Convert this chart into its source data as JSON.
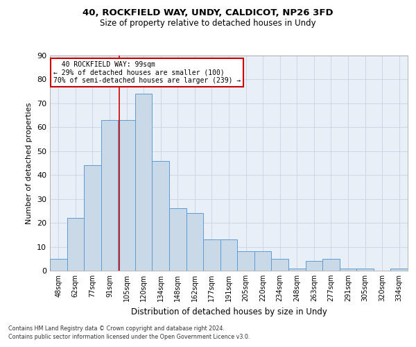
{
  "title1": "40, ROCKFIELD WAY, UNDY, CALDICOT, NP26 3FD",
  "title2": "Size of property relative to detached houses in Undy",
  "xlabel": "Distribution of detached houses by size in Undy",
  "ylabel": "Number of detached properties",
  "categories": [
    "48sqm",
    "62sqm",
    "77sqm",
    "91sqm",
    "105sqm",
    "120sqm",
    "134sqm",
    "148sqm",
    "162sqm",
    "177sqm",
    "191sqm",
    "205sqm",
    "220sqm",
    "234sqm",
    "248sqm",
    "263sqm",
    "277sqm",
    "291sqm",
    "305sqm",
    "320sqm",
    "334sqm"
  ],
  "values": [
    5,
    22,
    44,
    63,
    63,
    74,
    46,
    26,
    24,
    13,
    13,
    8,
    8,
    5,
    1,
    4,
    5,
    1,
    1,
    0,
    1
  ],
  "bar_color": "#c9d9e8",
  "bar_edge_color": "#5b9bd5",
  "grid_color": "#c8d4e0",
  "bg_color": "#e8eff6",
  "vline_x": 3.57,
  "vline_color": "#cc0000",
  "annotation_text": "  40 ROCKFIELD WAY: 99sqm\n← 29% of detached houses are smaller (100)\n70% of semi-detached houses are larger (239) →",
  "annotation_box_color": "#ffffff",
  "annotation_box_edge": "#cc0000",
  "footer1": "Contains HM Land Registry data © Crown copyright and database right 2024.",
  "footer2": "Contains public sector information licensed under the Open Government Licence v3.0.",
  "ylim": [
    0,
    90
  ],
  "yticks": [
    0,
    10,
    20,
    30,
    40,
    50,
    60,
    70,
    80,
    90
  ]
}
